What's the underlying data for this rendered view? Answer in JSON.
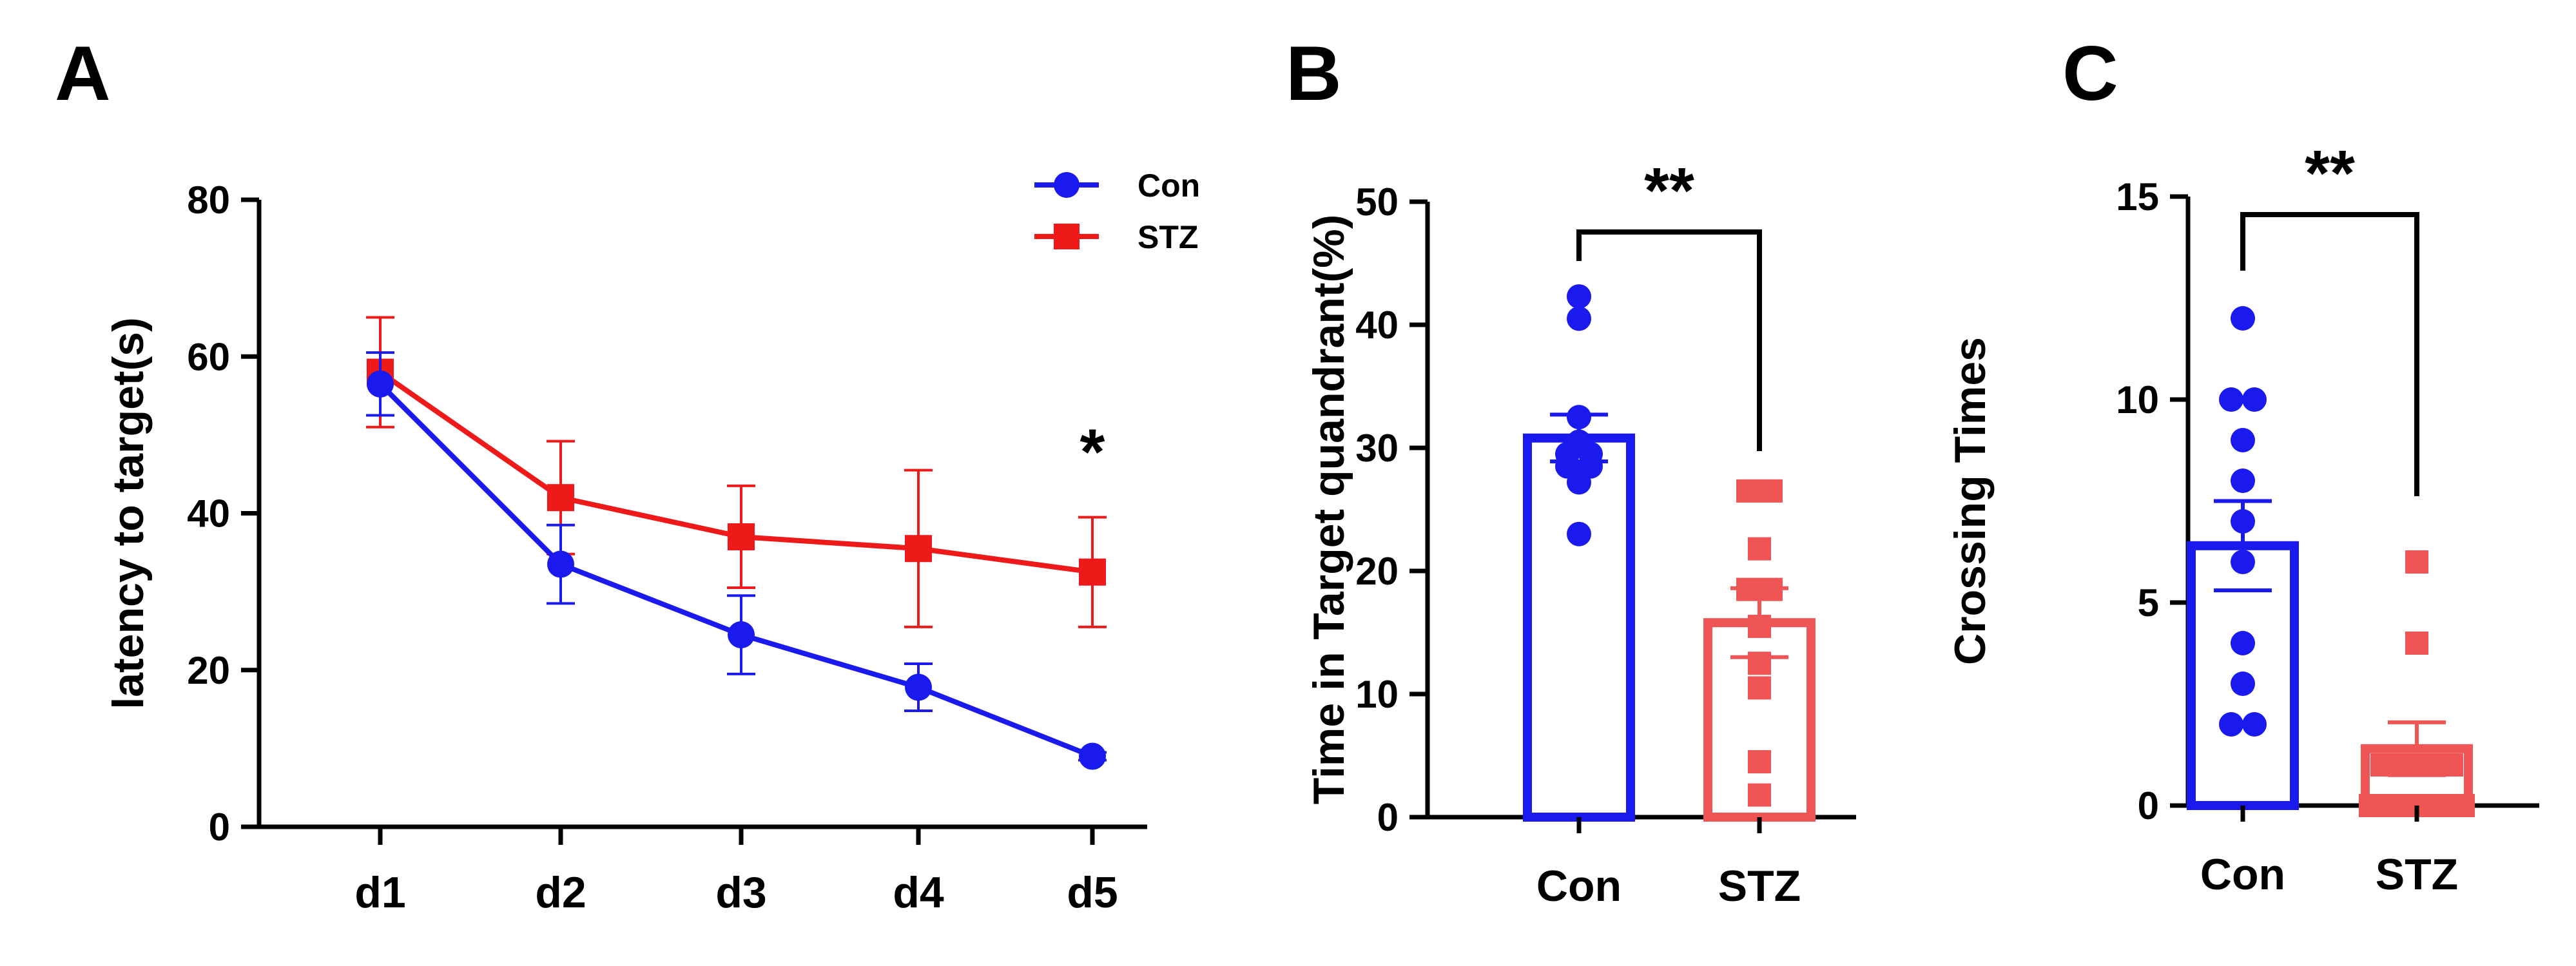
{
  "chart_data": [
    {
      "panel": "A",
      "type": "line",
      "ylabel": "latency to target(s)",
      "xlabel": "",
      "categories": [
        "d1",
        "d2",
        "d3",
        "d4",
        "d5"
      ],
      "ylim": [
        0,
        80
      ],
      "yticks": [
        0,
        20,
        40,
        60,
        80
      ],
      "legend_position": "top-right",
      "series": [
        {
          "name": "Con",
          "color": "#1a1aee",
          "marker": "circle",
          "values": [
            56.5,
            33.5,
            24.5,
            17.8,
            9
          ],
          "errors": [
            4.0,
            5.0,
            5.0,
            3.0,
            0.5
          ]
        },
        {
          "name": "STZ",
          "color": "#ee1a1a",
          "marker": "square",
          "values": [
            58,
            42,
            37,
            35.5,
            32.5
          ],
          "errors": [
            7.0,
            7.2,
            6.5,
            10.0,
            7.0
          ]
        }
      ],
      "annotations": [
        {
          "category": "d5",
          "text": "*"
        }
      ]
    },
    {
      "panel": "B",
      "type": "bar",
      "ylabel": "Time in Target quandrant(%)",
      "categories": [
        "Con",
        "STZ"
      ],
      "ylim": [
        0,
        50
      ],
      "yticks": [
        0,
        10,
        20,
        30,
        40,
        50
      ],
      "colors": [
        "#1a1aee",
        "#f05555"
      ],
      "values": [
        30.8,
        15.8
      ],
      "sem": [
        1.9,
        2.8
      ],
      "points": [
        [
          42.3,
          40.5,
          32.5,
          30.5,
          29.5,
          29.5,
          28.5,
          28.5,
          27.2,
          23.0
        ],
        [
          26.5,
          26.5,
          21.8,
          18.5,
          18.5,
          15.5,
          12.5,
          10.5,
          4.5,
          1.8
        ]
      ],
      "significance": "**"
    },
    {
      "panel": "C",
      "type": "bar",
      "ylabel": "Crossing Times",
      "categories": [
        "Con",
        "STZ"
      ],
      "ylim": [
        0,
        15
      ],
      "yticks": [
        0,
        5,
        10,
        15
      ],
      "colors": [
        "#1a1aee",
        "#f05555"
      ],
      "values": [
        6.4,
        1.4
      ],
      "sem": [
        1.1,
        0.65
      ],
      "points": [
        [
          12,
          10,
          10,
          9,
          8,
          7,
          6,
          4,
          3,
          2,
          2
        ],
        [
          6,
          4,
          1,
          1,
          1,
          1,
          0,
          0,
          0,
          0,
          0
        ]
      ],
      "significance": "**"
    }
  ]
}
